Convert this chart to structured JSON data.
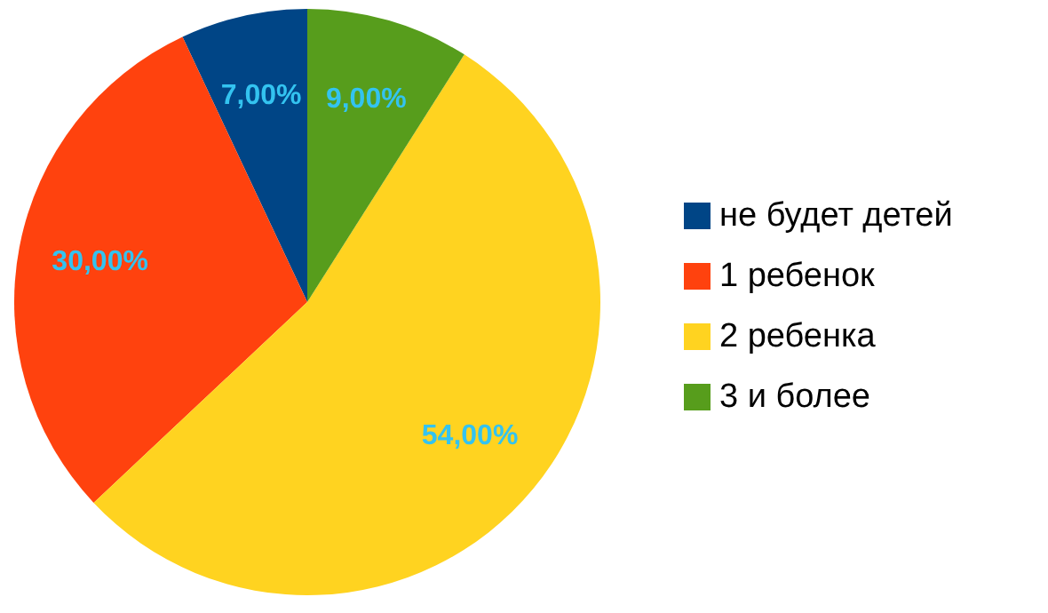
{
  "chart_data": {
    "type": "pie",
    "categories": [
      "не будет детей",
      "1 ребенок",
      "2 ребенка",
      "3 и более"
    ],
    "values": [
      7,
      30,
      54,
      9
    ],
    "colors": [
      "#004586",
      "#ff420e",
      "#ffd320",
      "#579d1c"
    ],
    "value_labels": [
      "7,00%",
      "30,00%",
      "54,00%",
      "9,00%"
    ],
    "legend": "right"
  }
}
